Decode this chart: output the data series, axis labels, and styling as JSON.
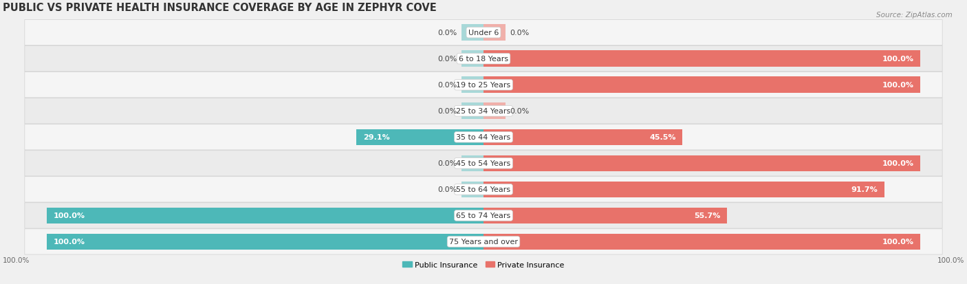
{
  "title": "PUBLIC VS PRIVATE HEALTH INSURANCE COVERAGE BY AGE IN ZEPHYR COVE",
  "source": "Source: ZipAtlas.com",
  "categories": [
    "Under 6",
    "6 to 18 Years",
    "19 to 25 Years",
    "25 to 34 Years",
    "35 to 44 Years",
    "45 to 54 Years",
    "55 to 64 Years",
    "65 to 74 Years",
    "75 Years and over"
  ],
  "public_values": [
    0.0,
    0.0,
    0.0,
    0.0,
    29.1,
    0.0,
    0.0,
    100.0,
    100.0
  ],
  "private_values": [
    0.0,
    100.0,
    100.0,
    0.0,
    45.5,
    100.0,
    91.7,
    55.7,
    100.0
  ],
  "public_color": "#4db8b8",
  "public_color_light": "#a8d8d8",
  "private_color": "#e8726a",
  "private_color_light": "#f0b0aa",
  "public_label": "Public Insurance",
  "private_label": "Private Insurance",
  "row_bg_light": "#f4f4f4",
  "row_bg_dark": "#e8e8e8",
  "bar_height": 0.62,
  "stub_val": 5.0,
  "max_val": 100,
  "title_fontsize": 10.5,
  "source_fontsize": 7.5,
  "label_fontsize": 8,
  "category_fontsize": 8,
  "bottom_tick_label_left": "100.0%",
  "bottom_tick_label_right": "100.0%"
}
